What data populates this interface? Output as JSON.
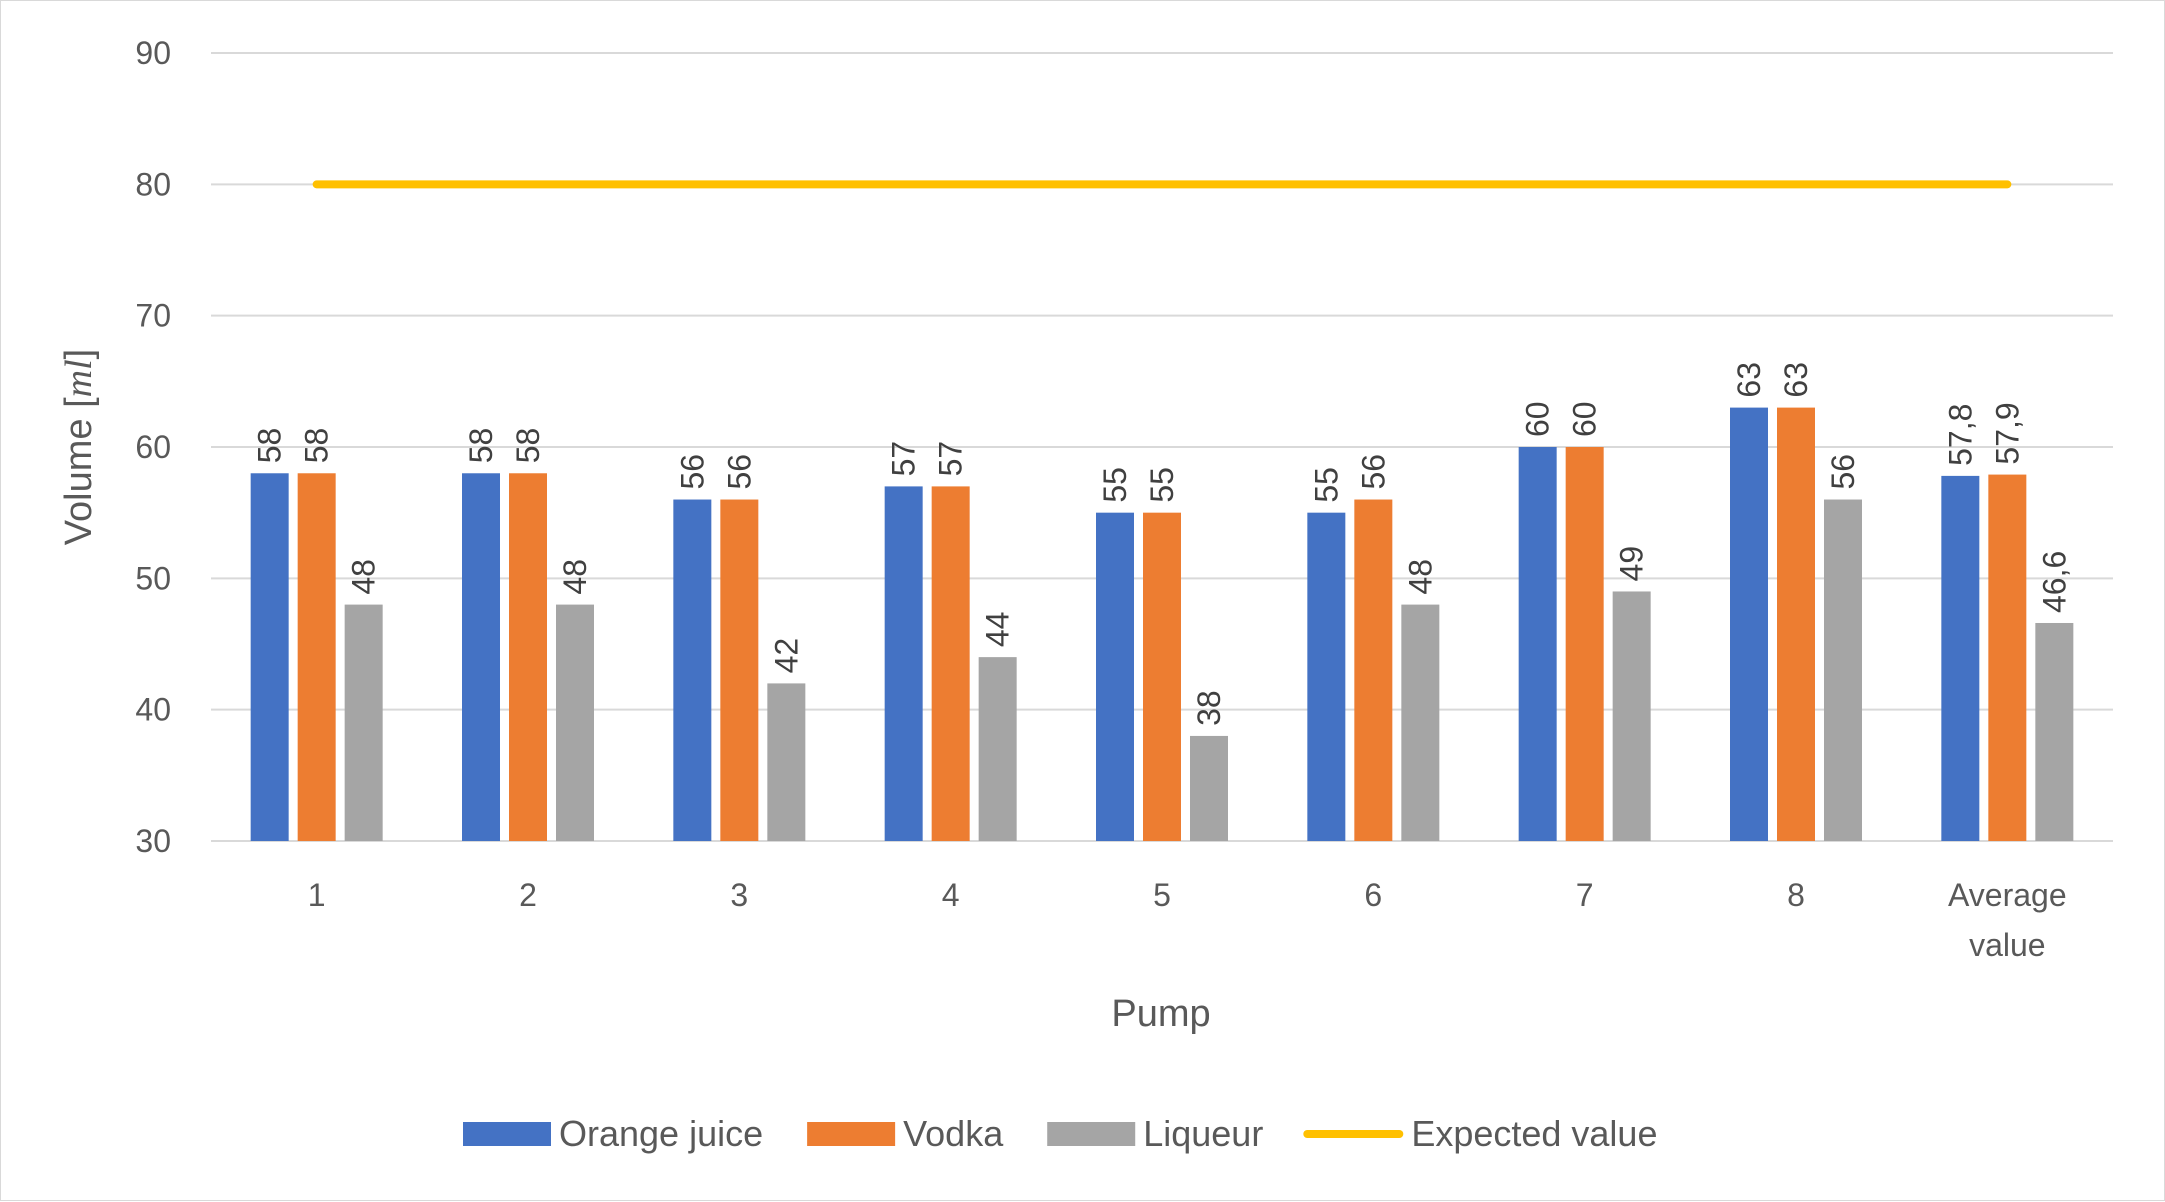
{
  "chart_data": {
    "type": "bar",
    "categories": [
      "1",
      "2",
      "3",
      "4",
      "5",
      "6",
      "7",
      "8",
      [
        "Average",
        "value"
      ]
    ],
    "series": [
      {
        "name": "Orange juice",
        "type": "bar",
        "color": "#4472c4",
        "values": [
          58,
          58,
          56,
          57,
          55,
          55,
          60,
          63,
          57.8
        ],
        "labels": [
          "58",
          "58",
          "56",
          "57",
          "55",
          "55",
          "60",
          "63",
          "57,8"
        ]
      },
      {
        "name": "Vodka",
        "type": "bar",
        "color": "#ed7d31",
        "values": [
          58,
          58,
          56,
          57,
          55,
          56,
          60,
          63,
          57.9
        ],
        "labels": [
          "58",
          "58",
          "56",
          "57",
          "55",
          "56",
          "60",
          "63",
          "57,9"
        ]
      },
      {
        "name": "Liqueur",
        "type": "bar",
        "color": "#a5a5a5",
        "values": [
          48,
          48,
          42,
          44,
          38,
          48,
          49,
          56,
          46.6
        ],
        "labels": [
          "48",
          "48",
          "42",
          "44",
          "38",
          "48",
          "49",
          "56",
          "46,6"
        ]
      },
      {
        "name": "Expected value",
        "type": "line",
        "color": "#ffc000",
        "values": [
          80,
          80,
          80,
          80,
          80,
          80,
          80,
          80,
          80
        ]
      }
    ],
    "xlabel": "Pump",
    "ylabel": "Volume [ml]",
    "ylabel_plain": "Volume [",
    "ylabel_unit": "ml",
    "ylabel_close": "]",
    "ylim": [
      30,
      90
    ],
    "yticks": [
      30,
      40,
      50,
      60,
      70,
      80,
      90
    ],
    "grid": true,
    "legend_position": "bottom"
  }
}
